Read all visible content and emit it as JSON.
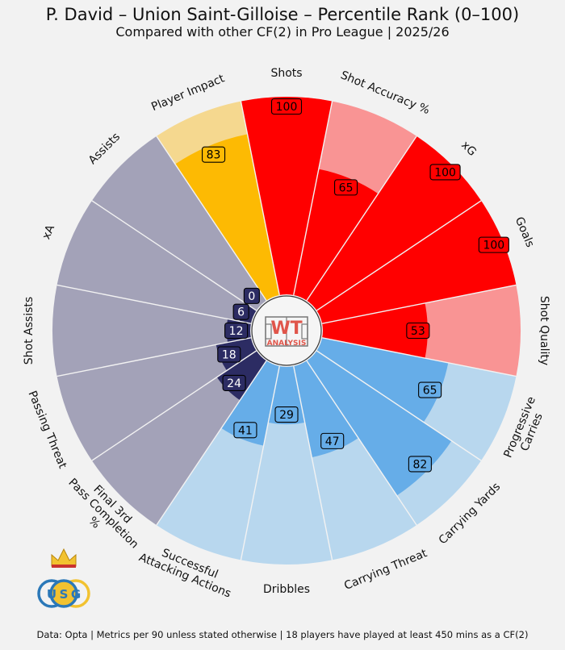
{
  "header": {
    "title": "P. David – Union Saint-Gilloise – Percentile Rank (0–100)",
    "subtitle": "Compared with other CF(2) in Pro League | 2025/26"
  },
  "footer": {
    "text": "Data: Opta | Metrics per 90 unless stated otherwise | 18 players have played at least 450 mins as a CF(2)"
  },
  "logo": {
    "center_text_1": "WT",
    "center_text_2": "ANALYSIS",
    "club_letters": [
      "U",
      "S",
      "G"
    ]
  },
  "chart_data": {
    "type": "polar-bar",
    "range": [
      0,
      100
    ],
    "metrics": [
      {
        "label": "Shots",
        "value": 100,
        "group": "shooting"
      },
      {
        "label": "Shot Accuracy %",
        "value": 65,
        "group": "shooting"
      },
      {
        "label": "xG",
        "value": 100,
        "group": "shooting"
      },
      {
        "label": "Goals",
        "value": 100,
        "group": "shooting"
      },
      {
        "label": "Shot Quality",
        "value": 53,
        "group": "shooting"
      },
      {
        "label": "Progressive\nCarries",
        "value": 65,
        "group": "carrying"
      },
      {
        "label": "Carrying Yards",
        "value": 82,
        "group": "carrying"
      },
      {
        "label": "Carrying Threat",
        "value": 47,
        "group": "carrying"
      },
      {
        "label": "Dribbles",
        "value": 29,
        "group": "carrying"
      },
      {
        "label": "Successful\nAttacking Actions",
        "value": 41,
        "group": "carrying"
      },
      {
        "label": "Final 3rd\nPass Completion\n%",
        "value": 24,
        "group": "passing"
      },
      {
        "label": "Passing Threat",
        "value": 18,
        "group": "passing"
      },
      {
        "label": "Shot Assists",
        "value": 12,
        "group": "passing"
      },
      {
        "label": "xA",
        "value": 6,
        "group": "passing"
      },
      {
        "label": "Assists",
        "value": 0,
        "group": "passing"
      },
      {
        "label": "Player Impact",
        "value": 83,
        "group": "impact"
      }
    ],
    "group_colors": {
      "shooting": {
        "bar": "#ff0000",
        "background": "#f99494"
      },
      "carrying": {
        "bar": "#66ade8",
        "background": "#b8d7ee"
      },
      "passing": {
        "bar": "#2c2c63",
        "background": "#a3a2b8"
      },
      "impact": {
        "bar": "#fdba03",
        "background": "#f5d88f"
      }
    }
  }
}
